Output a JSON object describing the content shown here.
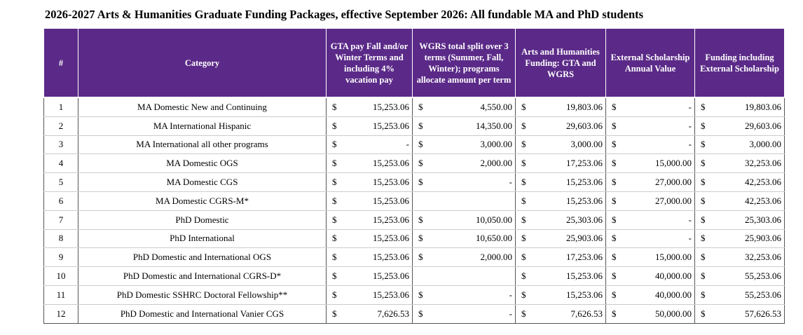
{
  "title": "2026-2027 Arts & Humanities Graduate Funding Packages, effective September 2026:  All fundable MA and PhD students",
  "table": {
    "currency": "$",
    "headers": [
      "#",
      "Category",
      "GTA pay Fall and/or Winter Terms and including 4% vacation pay",
      "WGRS total split over 3 terms (Summer, Fall, Winter); programs allocate amount per term",
      "Arts and Humanities Funding: GTA and WGRS",
      "External Scholarship Annual Value",
      "Funding including External Scholarship"
    ],
    "rows": [
      [
        "1",
        "MA Domestic New and Continuing",
        "15,253.06",
        "4,550.00",
        "19,803.06",
        "-",
        "19,803.06"
      ],
      [
        "2",
        "MA International Hispanic",
        "15,253.06",
        "14,350.00",
        "29,603.06",
        "-",
        "29,603.06"
      ],
      [
        "3",
        "MA International all other programs",
        "-",
        "3,000.00",
        "3,000.00",
        "-",
        "3,000.00"
      ],
      [
        "4",
        "MA Domestic OGS",
        "15,253.06",
        "2,000.00",
        "17,253.06",
        "15,000.00",
        "32,253.06"
      ],
      [
        "5",
        "MA Domestic CGS",
        "15,253.06",
        "-",
        "15,253.06",
        "27,000.00",
        "42,253.06"
      ],
      [
        "6",
        "MA Domestic CGRS-M*",
        "15,253.06",
        null,
        "15,253.06",
        "27,000.00",
        "42,253.06"
      ],
      [
        "7",
        "PhD Domestic",
        "15,253.06",
        "10,050.00",
        "25,303.06",
        "-",
        "25,303.06"
      ],
      [
        "8",
        "PhD International",
        "15,253.06",
        "10,650.00",
        "25,903.06",
        "-",
        "25,903.06"
      ],
      [
        "9",
        "PhD Domestic and International OGS",
        "15,253.06",
        "2,000.00",
        "17,253.06",
        "15,000.00",
        "32,253.06"
      ],
      [
        "10",
        "PhD Domestic and International CGRS-D*",
        "15,253.06",
        null,
        "15,253.06",
        "40,000.00",
        "55,253.06"
      ],
      [
        "11",
        "PhD Domestic SSHRC Doctoral Fellowship**",
        "15,253.06",
        "-",
        "15,253.06",
        "40,000.00",
        "55,253.06"
      ],
      [
        "12",
        "PhD Domestic and International Vanier CGS",
        "7,626.53",
        "-",
        "7,626.53",
        "50,000.00",
        "57,626.53"
      ]
    ]
  }
}
